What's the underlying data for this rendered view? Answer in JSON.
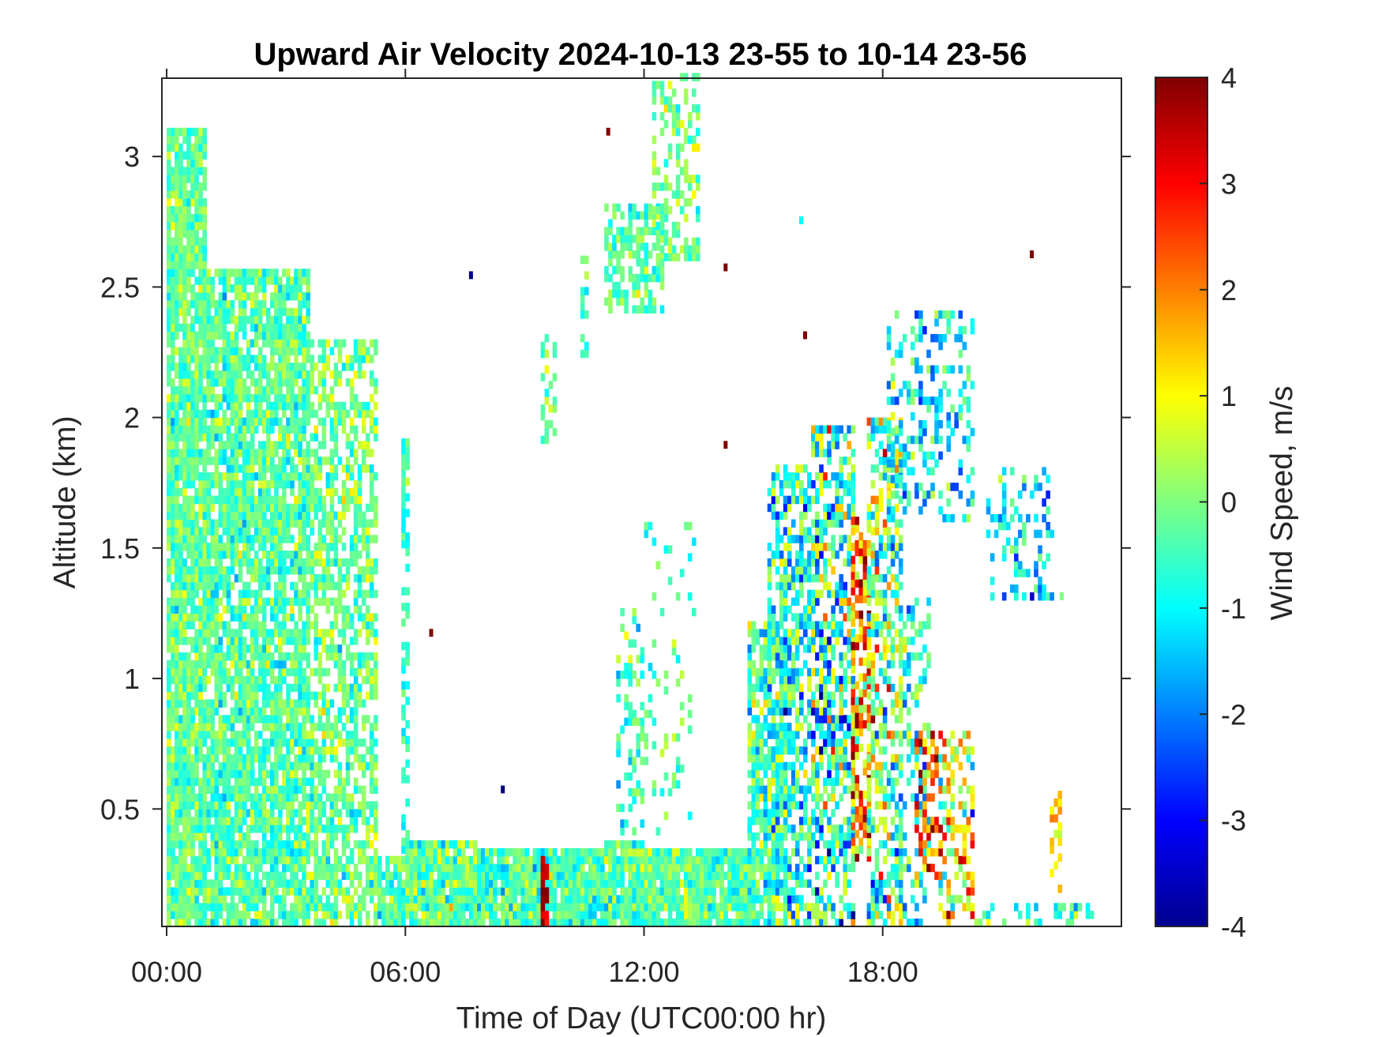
{
  "chart_data": {
    "type": "heatmap",
    "title": "Upward Air Velocity 2024-10-13 23-55 to 10-14 23-56",
    "xlabel": "Time of Day (UTC00:00 hr)",
    "ylabel": "Altitude (km)",
    "x_ticks": [
      {
        "value": 0,
        "label": "00:00"
      },
      {
        "value": 6,
        "label": "06:00"
      },
      {
        "value": 12,
        "label": "12:00"
      },
      {
        "value": 18,
        "label": "18:00"
      }
    ],
    "y_ticks": [
      {
        "value": 0.5,
        "label": "0.5"
      },
      {
        "value": 1,
        "label": "1"
      },
      {
        "value": 1.5,
        "label": "1.5"
      },
      {
        "value": 2,
        "label": "2"
      },
      {
        "value": 2.5,
        "label": "2.5"
      },
      {
        "value": 3,
        "label": "3"
      }
    ],
    "xlim": [
      -0.12,
      24.0
    ],
    "ylim": [
      0.05,
      3.3
    ],
    "colorbar": {
      "label": "Wind Speed, m/s",
      "range": [
        -4,
        4
      ],
      "colormap": "jet",
      "ticks": [
        {
          "value": 4,
          "label": "4"
        },
        {
          "value": 3,
          "label": "3"
        },
        {
          "value": 2,
          "label": "2"
        },
        {
          "value": 1,
          "label": "1"
        },
        {
          "value": 0,
          "label": "0"
        },
        {
          "value": -1,
          "label": "-1"
        },
        {
          "value": -2,
          "label": "-2"
        },
        {
          "value": -3,
          "label": "-3"
        },
        {
          "value": -4,
          "label": "-4"
        }
      ]
    },
    "grid": false,
    "cell_hours": 0.1,
    "cell_km": 0.03,
    "regions": [
      {
        "t": [
          0.0,
          1.0
        ],
        "z": [
          0.05,
          3.1
        ],
        "mean": -0.2,
        "spread": 0.5,
        "coverage": 0.92
      },
      {
        "t": [
          1.0,
          3.6
        ],
        "z": [
          0.05,
          2.55
        ],
        "mean": -0.3,
        "spread": 0.55,
        "coverage": 0.85
      },
      {
        "t": [
          3.6,
          5.3
        ],
        "z": [
          0.05,
          2.3
        ],
        "mean": -0.1,
        "spread": 0.6,
        "coverage": 0.62
      },
      {
        "t": [
          5.3,
          6.0
        ],
        "z": [
          0.05,
          0.32
        ],
        "mean": -0.2,
        "spread": 0.5,
        "coverage": 0.9
      },
      {
        "t": [
          5.9,
          6.1
        ],
        "z": [
          0.3,
          1.9
        ],
        "mean": -0.6,
        "spread": 0.4,
        "coverage": 0.5
      },
      {
        "t": [
          6.0,
          7.8
        ],
        "z": [
          0.05,
          0.38
        ],
        "mean": -0.2,
        "spread": 0.7,
        "coverage": 0.95
      },
      {
        "t": [
          7.8,
          11.0
        ],
        "z": [
          0.05,
          0.33
        ],
        "mean": -0.4,
        "spread": 0.6,
        "coverage": 0.95
      },
      {
        "t": [
          9.4,
          9.6
        ],
        "z": [
          0.05,
          0.3
        ],
        "mean": 3.6,
        "spread": 0.4,
        "coverage": 0.8
      },
      {
        "t": [
          9.4,
          9.8
        ],
        "z": [
          1.9,
          2.3
        ],
        "mean": -0.2,
        "spread": 0.5,
        "coverage": 0.4
      },
      {
        "t": [
          10.4,
          10.6
        ],
        "z": [
          2.2,
          2.6
        ],
        "mean": -0.3,
        "spread": 0.5,
        "coverage": 0.5
      },
      {
        "t": [
          11.0,
          12.0
        ],
        "z": [
          0.05,
          0.38
        ],
        "mean": -0.3,
        "spread": 0.6,
        "coverage": 0.95
      },
      {
        "t": [
          11.3,
          12.0
        ],
        "z": [
          0.4,
          1.25
        ],
        "mean": -0.5,
        "spread": 0.6,
        "coverage": 0.35
      },
      {
        "t": [
          11.0,
          12.5
        ],
        "z": [
          2.4,
          2.8
        ],
        "mean": -0.3,
        "spread": 0.5,
        "coverage": 0.65
      },
      {
        "t": [
          12.0,
          13.5
        ],
        "z": [
          0.05,
          0.34
        ],
        "mean": -0.2,
        "spread": 0.5,
        "coverage": 0.95
      },
      {
        "t": [
          12.0,
          13.3
        ],
        "z": [
          0.4,
          1.6
        ],
        "mean": -0.2,
        "spread": 0.6,
        "coverage": 0.14
      },
      {
        "t": [
          12.2,
          13.4
        ],
        "z": [
          2.6,
          3.3
        ],
        "mean": 0.0,
        "spread": 0.5,
        "coverage": 0.45
      },
      {
        "t": [
          13.5,
          14.8
        ],
        "z": [
          0.05,
          0.35
        ],
        "mean": -0.3,
        "spread": 0.6,
        "coverage": 0.95
      },
      {
        "t": [
          14.6,
          15.6
        ],
        "z": [
          0.05,
          1.2
        ],
        "mean": -0.4,
        "spread": 0.7,
        "coverage": 0.7
      },
      {
        "t": [
          15.1,
          16.2
        ],
        "z": [
          0.05,
          1.8
        ],
        "mean": -0.8,
        "spread": 1.0,
        "coverage": 0.6
      },
      {
        "t": [
          16.2,
          17.3
        ],
        "z": [
          0.05,
          1.95
        ],
        "mean": -0.6,
        "spread": 1.4,
        "coverage": 0.6
      },
      {
        "t": [
          17.2,
          17.7
        ],
        "z": [
          0.3,
          1.6
        ],
        "mean": 2.0,
        "spread": 1.3,
        "coverage": 0.65
      },
      {
        "t": [
          17.6,
          18.5
        ],
        "z": [
          0.05,
          2.0
        ],
        "mean": 0.0,
        "spread": 1.3,
        "coverage": 0.55
      },
      {
        "t": [
          18.4,
          19.2
        ],
        "z": [
          0.05,
          1.3
        ],
        "mean": -0.7,
        "spread": 1.0,
        "coverage": 0.4
      },
      {
        "t": [
          18.8,
          19.4
        ],
        "z": [
          0.2,
          0.8
        ],
        "mean": 2.6,
        "spread": 1.0,
        "coverage": 0.45
      },
      {
        "t": [
          19.4,
          20.3
        ],
        "z": [
          0.05,
          0.8
        ],
        "mean": 1.0,
        "spread": 1.5,
        "coverage": 0.4
      },
      {
        "t": [
          18.1,
          20.3
        ],
        "z": [
          1.6,
          2.4
        ],
        "mean": -1.0,
        "spread": 0.8,
        "coverage": 0.3
      },
      {
        "t": [
          20.6,
          22.3
        ],
        "z": [
          1.3,
          1.8
        ],
        "mean": -1.3,
        "spread": 0.8,
        "coverage": 0.3
      },
      {
        "t": [
          20.2,
          23.3
        ],
        "z": [
          0.05,
          0.12
        ],
        "mean": -0.8,
        "spread": 0.8,
        "coverage": 0.3
      },
      {
        "t": [
          22.2,
          22.5
        ],
        "z": [
          0.15,
          0.55
        ],
        "mean": 1.3,
        "spread": 0.5,
        "coverage": 0.5
      }
    ],
    "points": [
      {
        "t": 11.05,
        "z": 3.08,
        "w": 4.0
      },
      {
        "t": 14.0,
        "z": 2.56,
        "w": 4.0
      },
      {
        "t": 14.0,
        "z": 1.88,
        "w": 4.0
      },
      {
        "t": 16.0,
        "z": 2.3,
        "w": 4.0
      },
      {
        "t": 21.7,
        "z": 2.61,
        "w": 4.0
      },
      {
        "t": 7.6,
        "z": 2.53,
        "w": -4.0
      },
      {
        "t": 8.4,
        "z": 0.56,
        "w": -4.0
      },
      {
        "t": 6.6,
        "z": 1.16,
        "w": 4.0
      },
      {
        "t": 15.9,
        "z": 2.74,
        "w": -1.0
      },
      {
        "t": 22.45,
        "z": 1.3,
        "w": 0.0
      }
    ]
  }
}
